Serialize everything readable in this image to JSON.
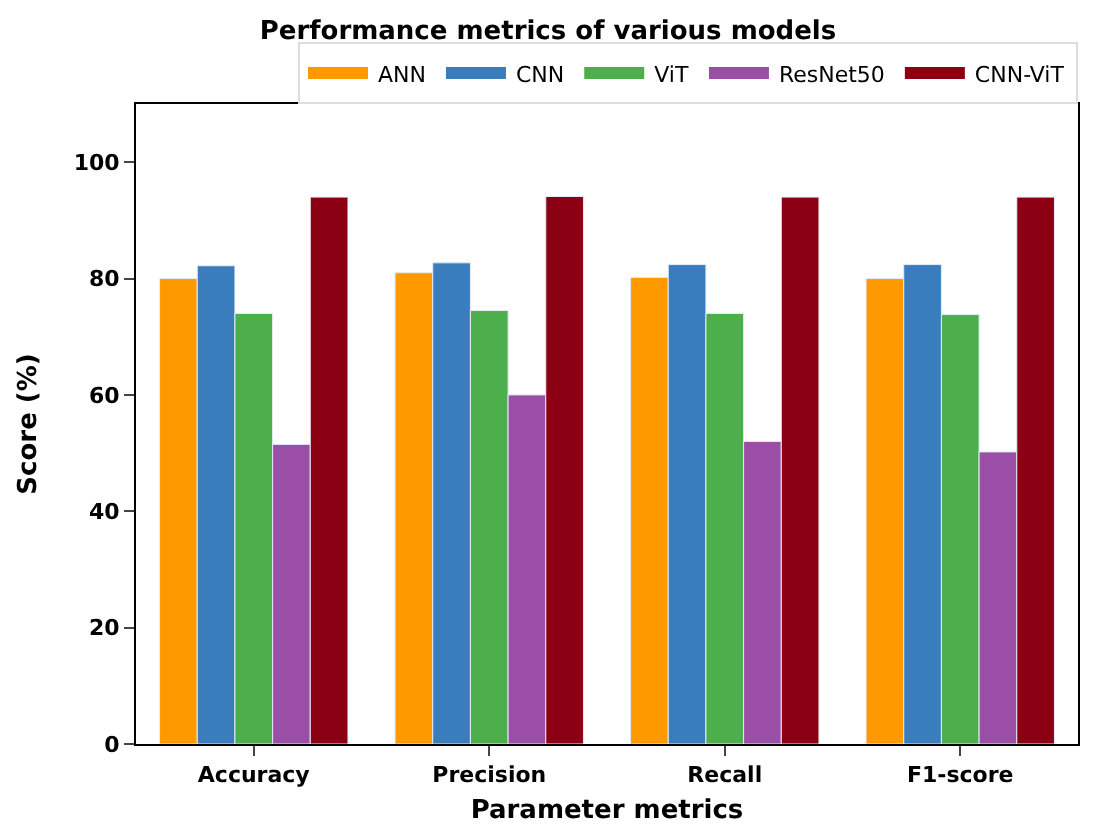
{
  "chart_data": {
    "type": "bar",
    "title": "Performance metrics of various models",
    "xlabel": "Parameter metrics",
    "ylabel": "Score (%)",
    "categories": [
      "Accuracy",
      "Precision",
      "Recall",
      "F1-score"
    ],
    "series": [
      {
        "name": "ANN",
        "color": "#ff9900",
        "values": [
          80,
          81,
          80.2,
          80
        ]
      },
      {
        "name": "CNN",
        "color": "#3a7dbd",
        "values": [
          82.2,
          82.7,
          82.4,
          82.4
        ]
      },
      {
        "name": "ViT",
        "color": "#4caf4c",
        "values": [
          74,
          74.5,
          74,
          73.8
        ]
      },
      {
        "name": "ResNet50",
        "color": "#9b4ea5",
        "values": [
          51.5,
          60,
          52,
          50.2
        ]
      },
      {
        "name": "CNN-ViT",
        "color": "#8b0012",
        "values": [
          94,
          94.1,
          94,
          94
        ]
      }
    ],
    "ylim": [
      0,
      110
    ],
    "yticks": [
      0,
      20,
      40,
      60,
      80,
      100
    ],
    "legend": "top right"
  }
}
